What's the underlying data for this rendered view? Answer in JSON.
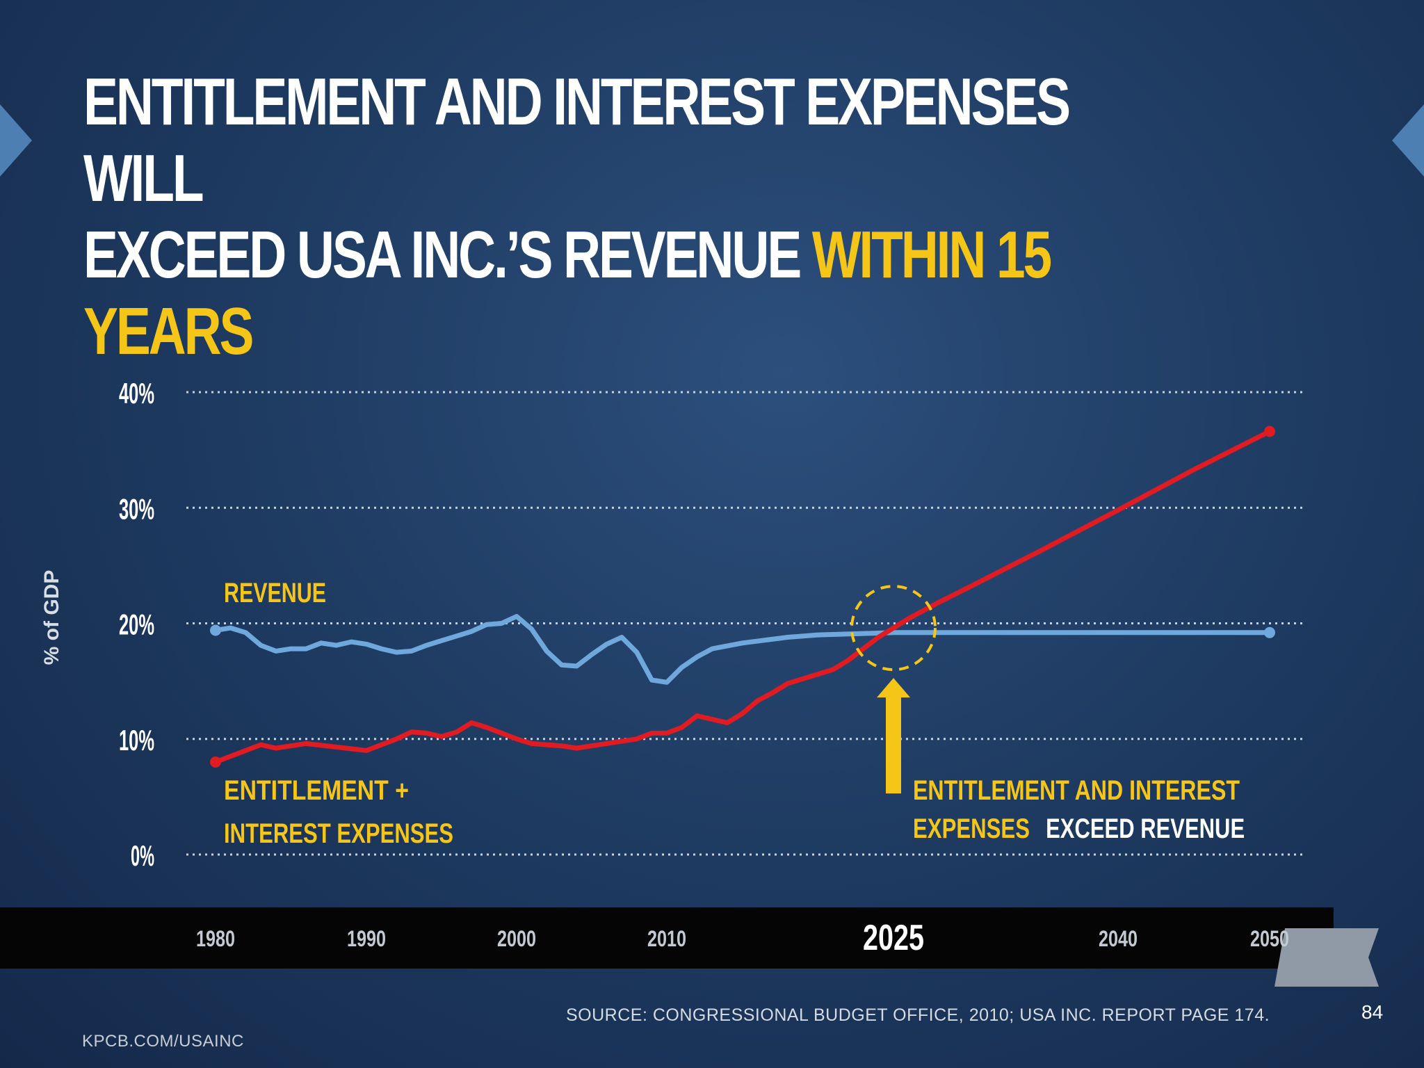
{
  "slide": {
    "title_line1": "ENTITLEMENT AND INTEREST EXPENSES WILL",
    "title_line2": "EXCEED USA INC.’S REVENUE",
    "title_highlight": "WITHIN 15 YEARS",
    "source": "SOURCE: CONGRESSIONAL BUDGET OFFICE, 2010; USA INC. REPORT PAGE 174.",
    "page_number": "84",
    "site_url": "KPCB.COM/USAINC"
  },
  "colors": {
    "revenue": "#6fa8dc",
    "expenses": "#e11b22",
    "accent": "#f5c518"
  },
  "chart_data": {
    "type": "line",
    "title": "ENTITLEMENT AND INTEREST EXPENSES WILL EXCEED USA INC.’S REVENUE WITHIN 15 YEARS",
    "ylabel": "% of GDP",
    "xlabel": "",
    "ylim": [
      0,
      40
    ],
    "y_ticks": [
      0,
      10,
      20,
      30,
      40
    ],
    "y_tick_labels": [
      "0%",
      "10%",
      "20%",
      "30%",
      "40%"
    ],
    "grid": true,
    "x_ticks": [
      1980,
      1990,
      2000,
      2010,
      2025,
      2040,
      2050
    ],
    "x_tick_labels": [
      "1980",
      "1990",
      "2000",
      "2010",
      "2025",
      "2040",
      "2050"
    ],
    "series": [
      {
        "name": "REVENUE",
        "x": [
          1980,
          1981,
          1982,
          1983,
          1984,
          1985,
          1986,
          1987,
          1988,
          1989,
          1990,
          1991,
          1992,
          1993,
          1994,
          1995,
          1996,
          1997,
          1998,
          1999,
          2000,
          2001,
          2002,
          2003,
          2004,
          2005,
          2006,
          2007,
          2008,
          2009,
          2010,
          2011,
          2012,
          2013,
          2015,
          2018,
          2020,
          2025,
          2030,
          2035,
          2040,
          2045,
          2050
        ],
        "values": [
          19.4,
          19.6,
          19.2,
          18.1,
          17.6,
          17.8,
          17.8,
          18.3,
          18.1,
          18.4,
          18.2,
          17.8,
          17.5,
          17.6,
          18.1,
          18.5,
          18.9,
          19.3,
          19.9,
          20.0,
          20.6,
          19.5,
          17.6,
          16.4,
          16.3,
          17.3,
          18.2,
          18.8,
          17.5,
          15.1,
          14.9,
          16.2,
          17.1,
          17.8,
          18.3,
          18.8,
          19.0,
          19.2,
          19.2,
          19.2,
          19.2,
          19.2,
          19.2
        ]
      },
      {
        "name": "ENTITLEMENT + INTEREST EXPENSES",
        "x": [
          1980,
          1982,
          1983,
          1984,
          1985,
          1986,
          1988,
          1990,
          1991,
          1992,
          1993,
          1994,
          1995,
          1996,
          1997,
          1998,
          1999,
          2000,
          2001,
          2002,
          2003,
          2004,
          2005,
          2006,
          2007,
          2008,
          2009,
          2010,
          2011,
          2012,
          2013,
          2014,
          2015,
          2016,
          2017,
          2018,
          2019,
          2020,
          2021,
          2022,
          2023,
          2024,
          2025,
          2026,
          2028,
          2030,
          2035,
          2040,
          2045,
          2050
        ],
        "values": [
          8.0,
          9.0,
          9.5,
          9.2,
          9.4,
          9.6,
          9.3,
          9.0,
          9.5,
          10.0,
          10.6,
          10.5,
          10.2,
          10.6,
          11.4,
          11.0,
          10.5,
          10.0,
          9.6,
          9.5,
          9.4,
          9.2,
          9.4,
          9.6,
          9.8,
          10.0,
          10.5,
          10.5,
          11.0,
          12.0,
          11.7,
          11.4,
          12.2,
          13.3,
          14.0,
          14.8,
          15.2,
          15.6,
          16.0,
          16.8,
          17.8,
          18.8,
          19.6,
          20.4,
          21.8,
          23.1,
          26.4,
          29.8,
          33.3,
          36.6
        ]
      }
    ],
    "annotations": [
      {
        "text_line1": "ENTITLEMENT AND INTEREST",
        "text_line2a": "EXPENSES",
        "text_line2b": "EXCEED REVENUE",
        "x": 2025,
        "y": 19.6,
        "marker": "dashed circle with upward arrow"
      }
    ],
    "series_labels": {
      "revenue": "REVENUE",
      "expenses_line1": "ENTITLEMENT +",
      "expenses_line2": "INTEREST EXPENSES"
    }
  }
}
